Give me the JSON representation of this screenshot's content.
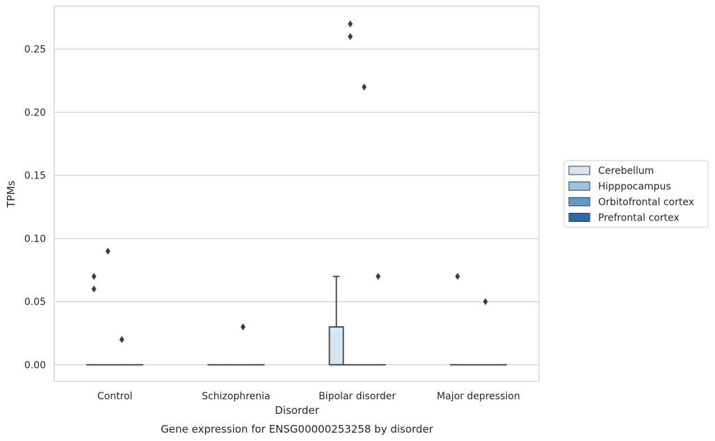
{
  "chart_data": {
    "type": "box",
    "caption": "Gene expression for ENSG00000253258 by disorder",
    "xlabel": "Disorder",
    "ylabel": "TPMs",
    "categories": [
      "Control",
      "Schizophrenia",
      "Bipolar disorder",
      "Major depression"
    ],
    "ylim": [
      -0.013,
      0.284
    ],
    "yticks": [
      0.0,
      0.05,
      0.1,
      0.15,
      0.2,
      0.25
    ],
    "ytick_labels": [
      "0.00",
      "0.05",
      "0.10",
      "0.15",
      "0.20",
      "0.25"
    ],
    "grid": true,
    "legend_position": "right",
    "series": [
      {
        "name": "Cerebellum",
        "color": "#d4e4f3",
        "boxes": [
          {
            "q1": 0,
            "median": 0,
            "q3": 0,
            "whisker_low": 0,
            "whisker_high": 0,
            "outliers": [
              0.06,
              0.07
            ]
          },
          {
            "q1": 0,
            "median": 0,
            "q3": 0,
            "whisker_low": 0,
            "whisker_high": 0,
            "outliers": []
          },
          {
            "q1": 0,
            "median": 0,
            "q3": 0.03,
            "whisker_low": 0,
            "whisker_high": 0.07,
            "outliers": []
          },
          {
            "q1": 0,
            "median": 0,
            "q3": 0,
            "whisker_low": 0,
            "whisker_high": 0,
            "outliers": [
              0.07
            ]
          }
        ]
      },
      {
        "name": "Hipppocampus",
        "color": "#9bc3de",
        "boxes": [
          {
            "q1": 0,
            "median": 0,
            "q3": 0,
            "whisker_low": 0,
            "whisker_high": 0,
            "outliers": [
              0.09
            ]
          },
          {
            "q1": 0,
            "median": 0,
            "q3": 0,
            "whisker_low": 0,
            "whisker_high": 0,
            "outliers": []
          },
          {
            "q1": 0,
            "median": 0,
            "q3": 0,
            "whisker_low": 0,
            "whisker_high": 0,
            "outliers": [
              0.26,
              0.27
            ]
          },
          {
            "q1": 0,
            "median": 0,
            "q3": 0,
            "whisker_low": 0,
            "whisker_high": 0,
            "outliers": []
          }
        ]
      },
      {
        "name": "Orbitofrontal cortex",
        "color": "#5b9ac8",
        "boxes": [
          {
            "q1": 0,
            "median": 0,
            "q3": 0,
            "whisker_low": 0,
            "whisker_high": 0,
            "outliers": [
              0.02
            ]
          },
          {
            "q1": 0,
            "median": 0,
            "q3": 0,
            "whisker_low": 0,
            "whisker_high": 0,
            "outliers": [
              0.03
            ]
          },
          {
            "q1": 0,
            "median": 0,
            "q3": 0,
            "whisker_low": 0,
            "whisker_high": 0,
            "outliers": [
              0.22
            ]
          },
          {
            "q1": 0,
            "median": 0,
            "q3": 0,
            "whisker_low": 0,
            "whisker_high": 0,
            "outliers": [
              0.05
            ]
          }
        ]
      },
      {
        "name": "Prefrontal cortex",
        "color": "#2b6aa8",
        "boxes": [
          {
            "q1": 0,
            "median": 0,
            "q3": 0,
            "whisker_low": 0,
            "whisker_high": 0,
            "outliers": []
          },
          {
            "q1": 0,
            "median": 0,
            "q3": 0,
            "whisker_low": 0,
            "whisker_high": 0,
            "outliers": []
          },
          {
            "q1": 0,
            "median": 0,
            "q3": 0,
            "whisker_low": 0,
            "whisker_high": 0,
            "outliers": [
              0.07
            ]
          },
          {
            "q1": 0,
            "median": 0,
            "q3": 0,
            "whisker_low": 0,
            "whisker_high": 0,
            "outliers": []
          }
        ]
      }
    ],
    "style": {
      "grid_color": "#cccccc",
      "frame_color": "#cccccc",
      "line_color": "#3d3d3d",
      "marker_color": "#3d3d3d"
    }
  }
}
